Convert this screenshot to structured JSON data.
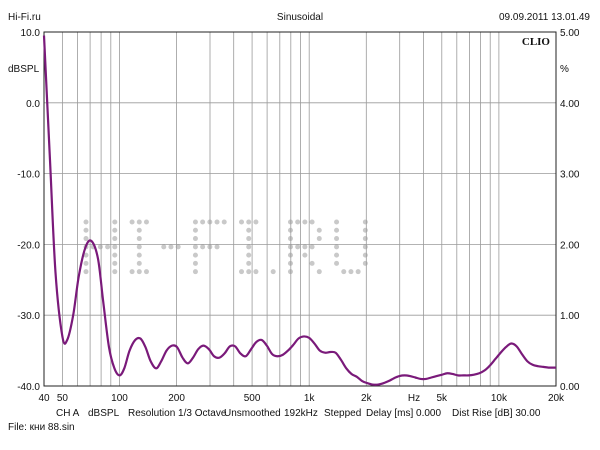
{
  "header": {
    "site": "Hi-Fi.ru",
    "mode": "Sinusoidal",
    "datetime": "09.09.2011 13.01.49"
  },
  "brand": "CLIO",
  "watermark_color": "#c9c9c9",
  "footer": {
    "channel": "CH A",
    "unit": "dBSPL",
    "resolution": "Resolution 1/3 Octave",
    "smoothing": "Unsmoothed",
    "rate": "192kHz",
    "stepped": "Stepped",
    "delay": "Delay [ms] 0.000",
    "dist_rise": "Dist Rise [dB] 30.00",
    "file": "File: кни 88.sin"
  },
  "chart_data": {
    "type": "line",
    "xscale": "log",
    "xlim": [
      40,
      20000
    ],
    "ylim": [
      -40,
      10
    ],
    "ylim_right": [
      0,
      5
    ],
    "ylabel": "dBSPL",
    "ylabel_right": "%",
    "xlabel": "Hz",
    "grid": true,
    "line_color": "#7a1a7a",
    "x_ticks": [
      {
        "value": 40,
        "label": "40"
      },
      {
        "value": 50,
        "label": "50"
      },
      {
        "value": 100,
        "label": "100"
      },
      {
        "value": 200,
        "label": "200"
      },
      {
        "value": 500,
        "label": "500"
      },
      {
        "value": 1000,
        "label": "1k"
      },
      {
        "value": 2000,
        "label": "2k"
      },
      {
        "value": 5000,
        "label": "5k"
      },
      {
        "value": 10000,
        "label": "10k"
      },
      {
        "value": 20000,
        "label": "20k"
      }
    ],
    "y_ticks": [
      "10.0",
      "0.0",
      "-10.0",
      "-20.0",
      "-30.0",
      "-40.0"
    ],
    "y_ticks_right": [
      "5.00",
      "4.00",
      "3.00",
      "2.00",
      "1.00",
      "0.00"
    ],
    "series": [
      {
        "x": [
          40,
          43,
          46,
          50,
          53,
          57,
          61,
          66,
          71,
          77,
          82,
          88,
          94,
          100,
          106,
          113,
          121,
          129,
          137,
          146,
          156,
          166,
          177,
          189,
          201,
          215,
          229,
          244,
          260,
          277,
          296,
          315,
          336,
          358,
          382,
          407,
          434,
          463,
          494,
          526,
          561,
          598,
          638,
          680,
          725,
          773,
          824,
          878,
          937,
          1000,
          1066,
          1137,
          1212,
          1292,
          1378,
          1470,
          1568,
          1672,
          1783,
          1902,
          2028,
          2163,
          2308,
          2462,
          2626,
          2801,
          2988,
          3187,
          3400,
          3627,
          3869,
          4127,
          4403,
          4697,
          5011,
          5346,
          5703,
          6085,
          6492,
          6926,
          7389,
          7882,
          8409,
          8971,
          9570,
          10211,
          10894,
          11623,
          12401,
          13230,
          14115,
          15060,
          16066,
          17143,
          18290,
          20000
        ],
        "y": [
          9.5,
          -8,
          -24,
          -33,
          -33.5,
          -30,
          -24.5,
          -20.5,
          -19.5,
          -22,
          -28,
          -34.5,
          -37.5,
          -38.5,
          -37.5,
          -35,
          -33.5,
          -33.3,
          -34.5,
          -36.5,
          -37.5,
          -36.5,
          -35,
          -34.3,
          -34.5,
          -36,
          -36.8,
          -36,
          -34.8,
          -34.3,
          -34.8,
          -35.8,
          -36,
          -35.4,
          -34.4,
          -34.4,
          -35.4,
          -35.8,
          -34.8,
          -33.8,
          -33.5,
          -34.3,
          -35.5,
          -35.8,
          -35.6,
          -35,
          -34.2,
          -33.3,
          -33,
          -33.2,
          -34,
          -35,
          -35.3,
          -35.2,
          -35.3,
          -36.3,
          -37.5,
          -38.3,
          -38.7,
          -39.3,
          -39.6,
          -39.8,
          -39.8,
          -39.6,
          -39.3,
          -38.9,
          -38.6,
          -38.5,
          -38.6,
          -38.8,
          -39.0,
          -39.0,
          -38.8,
          -38.6,
          -38.4,
          -38.2,
          -38.3,
          -38.5,
          -38.5,
          -38.5,
          -38.4,
          -38.2,
          -37.8,
          -37.1,
          -36.2,
          -35.3,
          -34.5,
          -34.0,
          -34.4,
          -35.5,
          -36.5,
          -37.0,
          -37.2,
          -37.3,
          -37.4,
          -37.4
        ]
      }
    ]
  }
}
